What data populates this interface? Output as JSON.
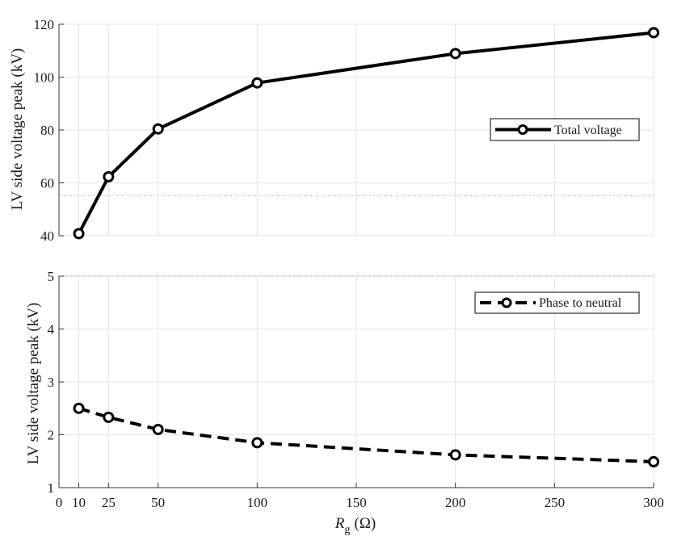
{
  "chart_data": [
    {
      "type": "line",
      "x": [
        10,
        25,
        50,
        100,
        200,
        300
      ],
      "series": [
        {
          "name": "Total voltage",
          "values": [
            40.8,
            62.3,
            80.4,
            97.8,
            108.9,
            116.8
          ],
          "style": "solid",
          "marker": "circle",
          "color": "#000000"
        }
      ],
      "xlim": [
        0,
        300
      ],
      "ylim": [
        40,
        120
      ],
      "yticks": [
        40,
        60,
        80,
        100,
        120
      ],
      "ylabel": "LV side voltage peak (kV)",
      "grid": true,
      "legend_position": "right"
    },
    {
      "type": "line",
      "x": [
        10,
        25,
        50,
        100,
        200,
        300
      ],
      "series": [
        {
          "name": "Phase to neutral",
          "values": [
            2.5,
            2.33,
            2.1,
            1.85,
            1.62,
            1.49
          ],
          "style": "dashed",
          "marker": "circle",
          "color": "#000000"
        }
      ],
      "xlim": [
        0,
        300
      ],
      "ylim": [
        1,
        5
      ],
      "yticks": [
        1,
        2,
        3,
        4,
        5
      ],
      "xticks": [
        0,
        10,
        25,
        50,
        100,
        150,
        200,
        250,
        300
      ],
      "ylabel": "LV side voltage peak (kV)",
      "xlabel": {
        "symbol": "R",
        "subscript": "g",
        "unit": "(Ω)"
      },
      "grid": true,
      "legend_position": "top-right"
    }
  ]
}
